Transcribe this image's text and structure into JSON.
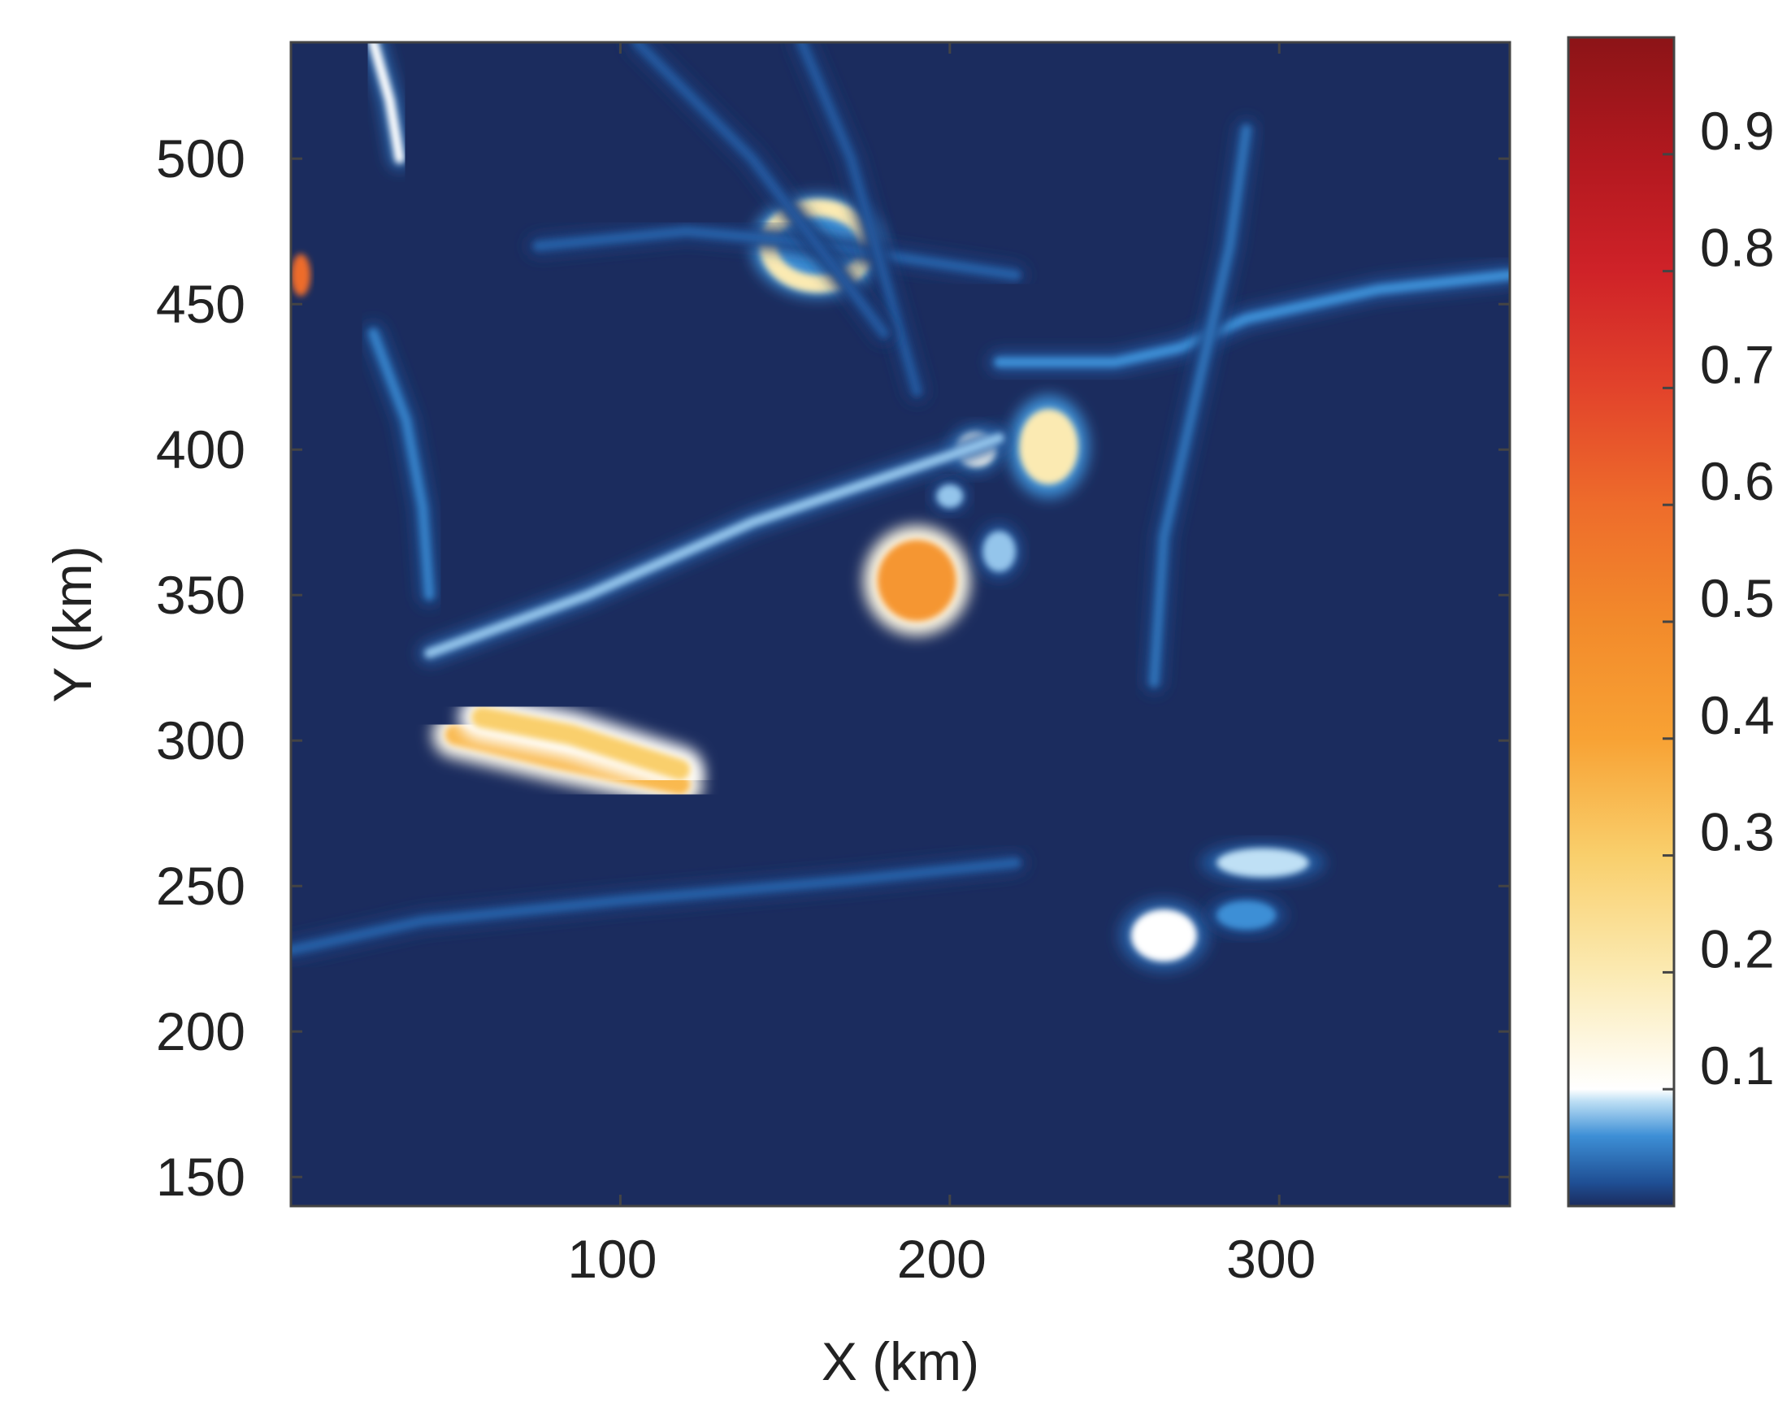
{
  "chart_data": {
    "type": "heatmap",
    "title": "",
    "xlabel": "X (km)",
    "ylabel": "Y (km)",
    "xlim": [
      0,
      370
    ],
    "ylim": [
      140,
      540
    ],
    "xticks": [
      100,
      200,
      300
    ],
    "yticks": [
      150,
      200,
      250,
      300,
      350,
      400,
      450,
      500
    ],
    "grid": false,
    "colorbar": {
      "range": [
        0,
        1
      ],
      "ticks": [
        0.1,
        0.2,
        0.3,
        0.4,
        0.5,
        0.6,
        0.7,
        0.8,
        0.9
      ],
      "colormap": [
        {
          "v": 0.0,
          "color": "#1b2c5e"
        },
        {
          "v": 0.02,
          "color": "#1f4f94"
        },
        {
          "v": 0.06,
          "color": "#3d8fd6"
        },
        {
          "v": 0.09,
          "color": "#bfe0f5"
        },
        {
          "v": 0.1,
          "color": "#ffffff"
        },
        {
          "v": 0.2,
          "color": "#fbeab2"
        },
        {
          "v": 0.3,
          "color": "#f9cf6c"
        },
        {
          "v": 0.4,
          "color": "#f8a234"
        },
        {
          "v": 0.5,
          "color": "#f28a2b"
        },
        {
          "v": 0.6,
          "color": "#ee6c2b"
        },
        {
          "v": 0.7,
          "color": "#e2432b"
        },
        {
          "v": 0.8,
          "color": "#cf2228"
        },
        {
          "v": 0.9,
          "color": "#b1181f"
        },
        {
          "v": 1.0,
          "color": "#8c1417"
        }
      ]
    },
    "background_value": 0.0,
    "features": [
      {
        "kind": "ridge",
        "value": 0.35,
        "points": [
          [
            50,
            302
          ],
          [
            80,
            294
          ],
          [
            118,
            285
          ]
        ]
      },
      {
        "kind": "ridge",
        "value": 0.3,
        "points": [
          [
            58,
            308
          ],
          [
            85,
            302
          ],
          [
            118,
            290
          ]
        ]
      },
      {
        "kind": "blob",
        "value": 0.45,
        "x": 190,
        "y": 355,
        "rx": 12,
        "ry": 14
      },
      {
        "kind": "ring",
        "value": 0.2,
        "x": 160,
        "y": 470,
        "rx": 15,
        "ry": 13
      },
      {
        "kind": "blob",
        "value": 0.2,
        "x": 230,
        "y": 401,
        "rx": 9,
        "ry": 13
      },
      {
        "kind": "blob",
        "value": 0.12,
        "x": 208,
        "y": 400,
        "rx": 6,
        "ry": 6
      },
      {
        "kind": "blob",
        "value": 0.08,
        "x": 200,
        "y": 384,
        "rx": 4,
        "ry": 4
      },
      {
        "kind": "blob",
        "value": 0.08,
        "x": 215,
        "y": 365,
        "rx": 5,
        "ry": 7
      },
      {
        "kind": "blob",
        "value": 0.1,
        "x": 265,
        "y": 233,
        "rx": 10,
        "ry": 9
      },
      {
        "kind": "blob",
        "value": 0.09,
        "x": 295,
        "y": 258,
        "rx": 14,
        "ry": 5
      },
      {
        "kind": "blob",
        "value": 0.06,
        "x": 290,
        "y": 240,
        "rx": 9,
        "ry": 5
      },
      {
        "kind": "lineament",
        "value": 0.08,
        "points": [
          [
            42,
            330
          ],
          [
            90,
            350
          ],
          [
            140,
            375
          ],
          [
            200,
            398
          ],
          [
            215,
            404
          ]
        ]
      },
      {
        "kind": "lineament",
        "value": 0.06,
        "points": [
          [
            215,
            430
          ],
          [
            250,
            430
          ],
          [
            270,
            435
          ],
          [
            290,
            445
          ],
          [
            330,
            455
          ],
          [
            370,
            460
          ]
        ]
      },
      {
        "kind": "lineament",
        "value": 0.04,
        "points": [
          [
            290,
            510
          ],
          [
            285,
            470
          ],
          [
            275,
            420
          ],
          [
            265,
            370
          ],
          [
            262,
            320
          ]
        ]
      },
      {
        "kind": "lineament",
        "value": 0.03,
        "points": [
          [
            0,
            228
          ],
          [
            40,
            238
          ],
          [
            100,
            245
          ],
          [
            170,
            252
          ],
          [
            220,
            258
          ]
        ]
      },
      {
        "kind": "lineament",
        "value": 0.03,
        "points": [
          [
            75,
            470
          ],
          [
            120,
            475
          ],
          [
            150,
            472
          ],
          [
            220,
            460
          ]
        ]
      },
      {
        "kind": "lineament",
        "value": 0.025,
        "points": [
          [
            155,
            540
          ],
          [
            170,
            500
          ],
          [
            180,
            460
          ],
          [
            190,
            420
          ]
        ]
      },
      {
        "kind": "lineament",
        "value": 0.025,
        "points": [
          [
            105,
            540
          ],
          [
            140,
            500
          ],
          [
            160,
            470
          ],
          [
            180,
            440
          ]
        ]
      },
      {
        "kind": "lineament",
        "value": 0.1,
        "points": [
          [
            25,
            540
          ],
          [
            30,
            520
          ],
          [
            33,
            500
          ]
        ]
      },
      {
        "kind": "lineament",
        "value": 0.05,
        "points": [
          [
            25,
            440
          ],
          [
            35,
            410
          ],
          [
            40,
            380
          ],
          [
            42,
            350
          ]
        ]
      },
      {
        "kind": "hotspot",
        "value": 0.6,
        "x": 3,
        "y": 460
      }
    ]
  }
}
